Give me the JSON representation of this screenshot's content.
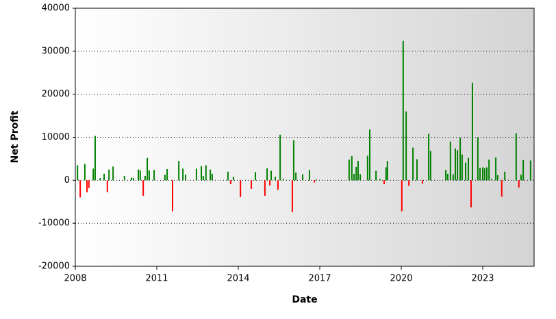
{
  "chart_data": {
    "type": "bar",
    "x_label": "Date",
    "y_label": "Net Profit",
    "positive_color": "#008000",
    "negative_color": "#ff0000",
    "grid": true,
    "xlim": [
      2008,
      2024.89
    ],
    "xticks": [
      2008,
      2011,
      2014,
      2017,
      2020,
      2023
    ],
    "ylim": [
      -20000,
      40000
    ],
    "yticks": [
      -20000,
      -10000,
      0,
      10000,
      20000,
      30000,
      40000
    ],
    "x": [
      2008.08,
      2008.18,
      2008.35,
      2008.43,
      2008.5,
      2008.66,
      2008.73,
      2008.91,
      2009.06,
      2009.18,
      2009.24,
      2009.39,
      2009.81,
      2010.07,
      2010.14,
      2010.32,
      2010.39,
      2010.5,
      2010.57,
      2010.65,
      2010.72,
      2010.9,
      2011.3,
      2011.38,
      2011.58,
      2011.81,
      2011.96,
      2012.06,
      2012.46,
      2012.64,
      2012.71,
      2012.81,
      2012.97,
      2013.04,
      2013.62,
      2013.72,
      2013.82,
      2014.08,
      2014.48,
      2014.63,
      2014.98,
      2015.06,
      2015.16,
      2015.21,
      2015.36,
      2015.46,
      2015.54,
      2015.66,
      2015.99,
      2016.04,
      2016.12,
      2016.37,
      2016.62,
      2016.8,
      2016.87,
      2018.08,
      2018.18,
      2018.26,
      2018.34,
      2018.41,
      2018.49,
      2018.76,
      2018.84,
      2019.07,
      2019.22,
      2019.37,
      2019.44,
      2019.49,
      2020.02,
      2020.07,
      2020.18,
      2020.28,
      2020.43,
      2020.58,
      2020.78,
      2021.01,
      2021.08,
      2021.64,
      2021.71,
      2021.81,
      2021.91,
      2021.99,
      2022.07,
      2022.17,
      2022.24,
      2022.37,
      2022.47,
      2022.57,
      2022.62,
      2022.82,
      2022.9,
      2023.0,
      2023.07,
      2023.15,
      2023.23,
      2023.33,
      2023.48,
      2023.55,
      2023.7,
      2023.81,
      2024.23,
      2024.33,
      2024.41,
      2024.49,
      2024.76
    ],
    "values": [
      3500,
      -4000,
      3800,
      -2800,
      -1800,
      2700,
      10300,
      500,
      1500,
      -2800,
      2500,
      3200,
      1000,
      600,
      500,
      2500,
      2300,
      -3600,
      1000,
      5200,
      2300,
      2400,
      1300,
      2600,
      -7200,
      4500,
      2700,
      1300,
      2700,
      3300,
      1000,
      3500,
      2500,
      1500,
      2000,
      -900,
      800,
      -3900,
      -2000,
      1900,
      -3600,
      2800,
      -1200,
      2200,
      800,
      -2200,
      10600,
      300,
      -7400,
      9300,
      1800,
      1400,
      2400,
      -500,
      200,
      4800,
      5600,
      1500,
      3100,
      4500,
      1400,
      5700,
      11800,
      2200,
      300,
      -900,
      3000,
      4500,
      -7200,
      32400,
      16000,
      -1300,
      7600,
      4900,
      -800,
      10800,
      6800,
      2400,
      1500,
      9000,
      1400,
      7400,
      7000,
      9900,
      6000,
      4100,
      5200,
      -6300,
      22700,
      10000,
      2900,
      3000,
      2800,
      3000,
      4800,
      300,
      5300,
      1200,
      -3800,
      2000,
      10900,
      -1700,
      1300,
      4700,
      4600
    ]
  }
}
